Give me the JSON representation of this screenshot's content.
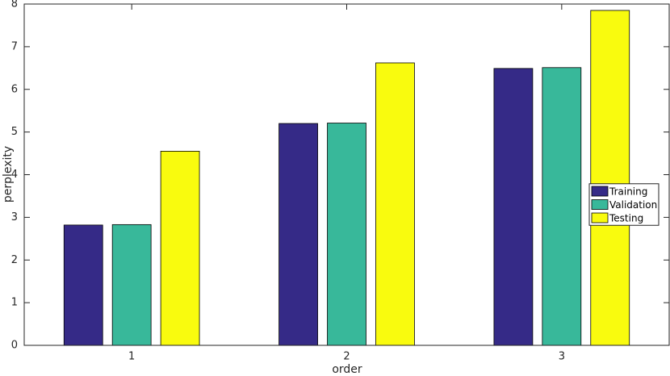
{
  "chart_data": {
    "type": "bar",
    "x_label": "order",
    "y_label": "perplexity",
    "categories": [
      "1",
      "2",
      "3"
    ],
    "series": [
      {
        "name": "Training",
        "color": "#352a87",
        "values": [
          2.82,
          5.2,
          6.49
        ]
      },
      {
        "name": "Validation",
        "color": "#38b89a",
        "values": [
          2.83,
          5.21,
          6.51
        ]
      },
      {
        "name": "Testing",
        "color": "#f9fb0e",
        "values": [
          4.55,
          6.62,
          7.85
        ]
      }
    ],
    "ylim": [
      0,
      8
    ],
    "yticks": [
      0,
      1,
      2,
      3,
      4,
      5,
      6,
      7,
      8
    ],
    "legend": "east"
  }
}
